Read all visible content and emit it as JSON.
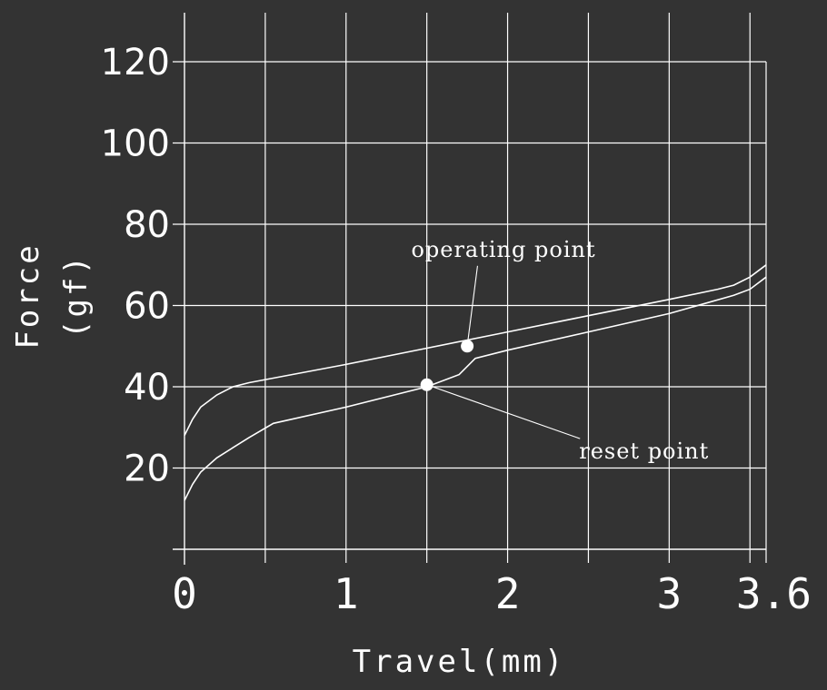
{
  "chart_data": {
    "type": "line",
    "xlabel": "Travel(mm)",
    "ylabel_line1": "Force",
    "ylabel_line2": "(gf)",
    "xlim": [
      0,
      3.6
    ],
    "ylim": [
      0,
      120
    ],
    "grid": true,
    "x_ticks": [
      0,
      1,
      2,
      3,
      3.6
    ],
    "x_tick_labels": [
      "0",
      "1",
      "2",
      "3",
      "3.6"
    ],
    "x_gridlines": [
      0.5,
      1,
      1.5,
      2,
      2.5,
      3,
      3.5
    ],
    "y_ticks": [
      20,
      40,
      60,
      80,
      100,
      120
    ],
    "y_tick_labels": [
      "20",
      "40",
      "60",
      "80",
      "100",
      "120"
    ],
    "series": [
      {
        "points": [
          [
            0,
            28
          ],
          [
            0.05,
            32
          ],
          [
            0.1,
            35
          ],
          [
            0.2,
            38
          ],
          [
            0.3,
            40
          ],
          [
            0.4,
            41
          ],
          [
            1.0,
            45.5
          ],
          [
            1.5,
            49.5
          ],
          [
            2.0,
            53.5
          ],
          [
            2.5,
            57.5
          ],
          [
            3.0,
            61.5
          ],
          [
            3.3,
            64
          ],
          [
            3.4,
            65
          ],
          [
            3.5,
            67
          ],
          [
            3.6,
            70
          ]
        ]
      },
      {
        "points": [
          [
            0,
            12
          ],
          [
            0.05,
            16
          ],
          [
            0.1,
            19
          ],
          [
            0.2,
            22.5
          ],
          [
            0.3,
            25
          ],
          [
            0.4,
            27.5
          ],
          [
            0.55,
            31
          ],
          [
            1.0,
            35
          ],
          [
            1.5,
            40
          ],
          [
            1.7,
            43
          ],
          [
            1.8,
            47
          ],
          [
            2.0,
            49
          ],
          [
            2.5,
            53.5
          ],
          [
            3.0,
            58
          ],
          [
            3.4,
            62.5
          ],
          [
            3.5,
            64
          ],
          [
            3.6,
            67
          ]
        ]
      }
    ],
    "annotations": [
      {
        "text": "operating point",
        "x": 1.75,
        "y": 50,
        "label_x": 1.6,
        "label_y": 72
      },
      {
        "text": "reset point",
        "x": 1.5,
        "y": 40.5,
        "label_x": 2.6,
        "label_y": 25
      }
    ]
  }
}
